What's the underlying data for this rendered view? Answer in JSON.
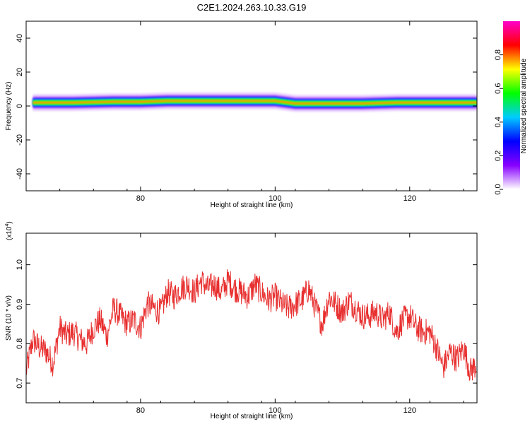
{
  "title": "C2E1.2024.263.10.33.G19",
  "chart_data": [
    {
      "type": "heatmap",
      "xlabel": "Height of straight line (km)",
      "ylabel": "Frequency (Hz)",
      "xlim": [
        63,
        130
      ],
      "ylim": [
        -50,
        50
      ],
      "x_ticks": [
        80,
        100,
        120
      ],
      "y_ticks": [
        -40,
        -20,
        0,
        20,
        40
      ],
      "grid": false,
      "ridge": [
        {
          "x": 64,
          "y": 2
        },
        {
          "x": 70,
          "y": 2
        },
        {
          "x": 76,
          "y": 2.5
        },
        {
          "x": 80,
          "y": 2.5
        },
        {
          "x": 84,
          "y": 3
        },
        {
          "x": 90,
          "y": 3
        },
        {
          "x": 96,
          "y": 3
        },
        {
          "x": 100,
          "y": 3
        },
        {
          "x": 103,
          "y": 1.5
        },
        {
          "x": 108,
          "y": 1.5
        },
        {
          "x": 113,
          "y": 1.5
        },
        {
          "x": 118,
          "y": 2
        },
        {
          "x": 124,
          "y": 2
        },
        {
          "x": 130,
          "y": 2
        }
      ],
      "colorbar": {
        "label": "Normalized spectral amplitude",
        "range": [
          0,
          1
        ],
        "ticks": [
          "0.0",
          "0.2",
          "0.4",
          "0.6",
          "0.8"
        ],
        "colors": [
          "#ffffff",
          "#8800ff",
          "#0000ff",
          "#00ccff",
          "#00ff00",
          "#ffff00",
          "#ff0000",
          "#ff00cc"
        ]
      }
    },
    {
      "type": "line",
      "xlabel": "Height of straight line (km)",
      "ylabel": "SNR (10 * v/v)",
      "multiplier": "(x10",
      "multiplier_exp": "4",
      "multiplier_close": ")",
      "xlim": [
        63,
        130
      ],
      "ylim": [
        6500,
        10800
      ],
      "x_ticks": [
        80,
        100,
        120
      ],
      "y_ticks": [
        {
          "value": 7000,
          "label": "0.7"
        },
        {
          "value": 8000,
          "label": "0.8"
        },
        {
          "value": 9000,
          "label": "0.9"
        },
        {
          "value": 10000,
          "label": "1.0"
        }
      ],
      "color": "#e83030",
      "series": [
        {
          "x": [
            63,
            64,
            65,
            66,
            67,
            68,
            69,
            70,
            71,
            72,
            73,
            74,
            75,
            76,
            77,
            78,
            79,
            80,
            81,
            82,
            83,
            84,
            85,
            86,
            87,
            88,
            89,
            90,
            91,
            92,
            93,
            94,
            95,
            96,
            97,
            98,
            99,
            100,
            101,
            102,
            103,
            104,
            105,
            106,
            107,
            108,
            109,
            110,
            111,
            112,
            113,
            114,
            115,
            116,
            117,
            118,
            119,
            120,
            121,
            122,
            123,
            124,
            125,
            126,
            127,
            128,
            129,
            130
          ],
          "y": [
            7300,
            8100,
            7900,
            7800,
            7500,
            8400,
            8200,
            8300,
            8100,
            8000,
            8400,
            8600,
            8200,
            8900,
            8700,
            8500,
            8600,
            8400,
            9000,
            8900,
            8800,
            9300,
            9200,
            9400,
            9500,
            9300,
            9600,
            9400,
            9500,
            9300,
            9600,
            9400,
            9300,
            9200,
            9500,
            9300,
            9100,
            9200,
            9000,
            8900,
            9000,
            9100,
            9400,
            8900,
            8500,
            9200,
            9000,
            8800,
            9100,
            8900,
            8700,
            8700,
            8800,
            8600,
            8800,
            8300,
            8600,
            8700,
            8400,
            8300,
            8300,
            7900,
            7400,
            7800,
            7600,
            7900,
            7300,
            7500
          ]
        }
      ]
    }
  ]
}
